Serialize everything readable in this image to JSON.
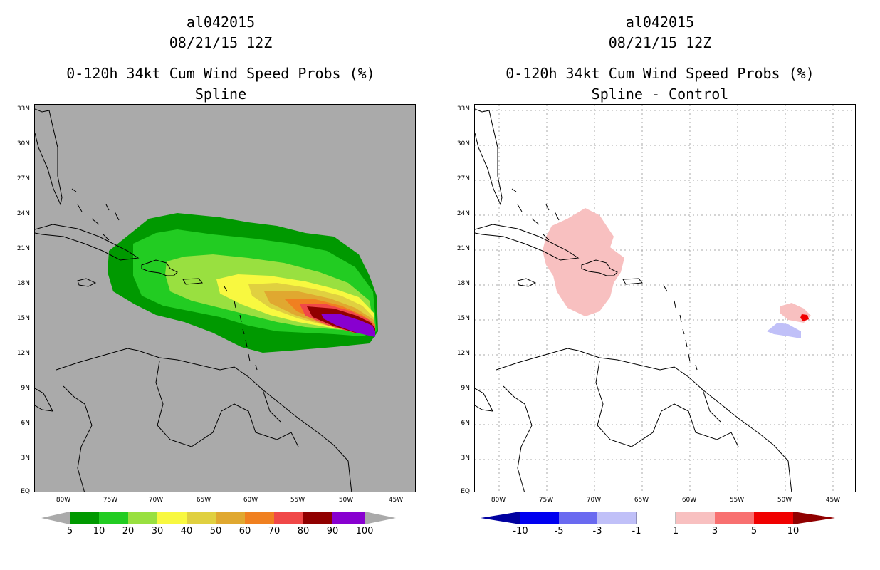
{
  "left": {
    "title_line1": "al042015",
    "title_line2": "08/21/15 12Z",
    "title_line3": "0-120h 34kt Cum Wind Speed Probs (%)",
    "title_line4": "Spline",
    "background_color": "#aaaaaa",
    "colorbar": {
      "labels": [
        "5",
        "10",
        "20",
        "30",
        "40",
        "50",
        "60",
        "70",
        "80",
        "90",
        "100"
      ],
      "colors": [
        "#009900",
        "#22cc22",
        "#99e040",
        "#f8f840",
        "#e0d040",
        "#e0a830",
        "#f08020",
        "#f04848",
        "#900000",
        "#8800d0"
      ]
    }
  },
  "right": {
    "title_line1": "al042015",
    "title_line2": "08/21/15 12Z",
    "title_line3": "0-120h 34kt Cum Wind Speed Probs (%)",
    "title_line4": "Spline - Control",
    "background_color": "#ffffff",
    "colorbar": {
      "labels": [
        "-10",
        "-5",
        "-3",
        "-1",
        "1",
        "3",
        "5",
        "10"
      ],
      "colors": [
        "#0000a0",
        "#0000f0",
        "#6a6af0",
        "#c0c0f8",
        "#ffffff",
        "#f8c0c0",
        "#f87070",
        "#f00000",
        "#900000"
      ]
    }
  },
  "axes": {
    "lat_labels": [
      "33N",
      "30N",
      "27N",
      "24N",
      "21N",
      "18N",
      "15N",
      "12N",
      "9N",
      "6N",
      "3N",
      "EQ"
    ],
    "lon_labels": [
      "80W",
      "75W",
      "70W",
      "65W",
      "60W",
      "55W",
      "50W",
      "45W"
    ]
  }
}
